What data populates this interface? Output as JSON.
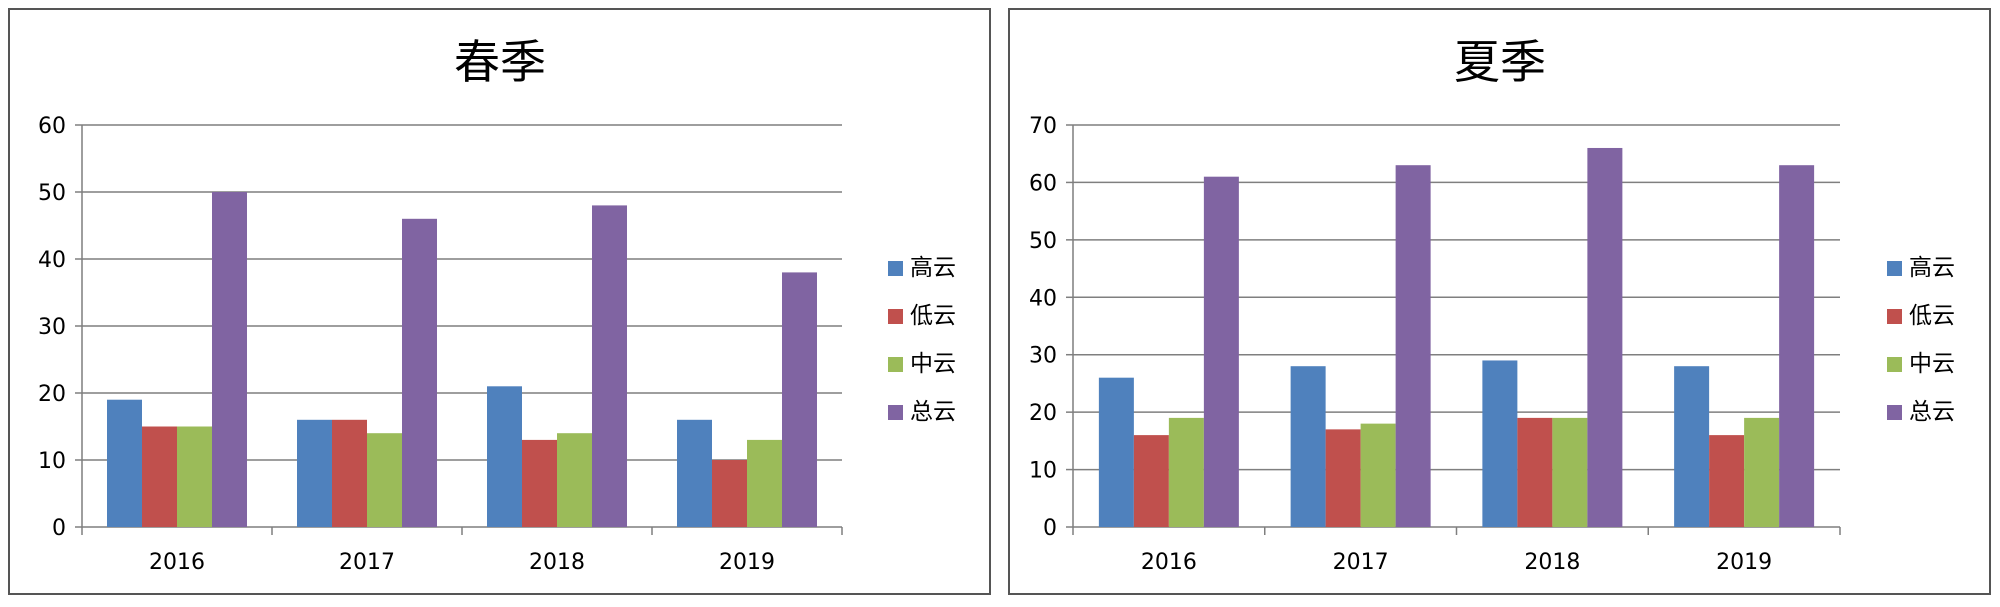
{
  "chart_data": [
    {
      "type": "bar",
      "title": "春季",
      "categories": [
        "2016",
        "2017",
        "2018",
        "2019"
      ],
      "series": [
        {
          "name": "高云",
          "values": [
            19,
            16,
            21,
            16
          ]
        },
        {
          "name": "低云",
          "values": [
            15,
            16,
            13,
            10
          ]
        },
        {
          "name": "中云",
          "values": [
            15,
            14,
            14,
            13
          ]
        },
        {
          "name": "总云",
          "values": [
            50,
            46,
            48,
            38
          ]
        }
      ],
      "ylim": [
        0,
        60
      ],
      "yticks": [
        0,
        10,
        20,
        30,
        40,
        50,
        60
      ],
      "xlabel": "",
      "ylabel": "",
      "grid": true,
      "legend": "right"
    },
    {
      "type": "bar",
      "title": "夏季",
      "categories": [
        "2016",
        "2017",
        "2018",
        "2019"
      ],
      "series": [
        {
          "name": "高云",
          "values": [
            26,
            28,
            29,
            28
          ]
        },
        {
          "name": "低云",
          "values": [
            16,
            17,
            19,
            16
          ]
        },
        {
          "name": "中云",
          "values": [
            19,
            18,
            19,
            19
          ]
        },
        {
          "name": "总云",
          "values": [
            61,
            63,
            66,
            63
          ]
        }
      ],
      "ylim": [
        0,
        70
      ],
      "yticks": [
        0,
        10,
        20,
        30,
        40,
        50,
        60,
        70
      ],
      "xlabel": "",
      "ylabel": "",
      "grid": true,
      "legend": "right"
    }
  ],
  "colors": [
    "#4F81BD",
    "#C0504D",
    "#9BBB59",
    "#8064A2"
  ]
}
